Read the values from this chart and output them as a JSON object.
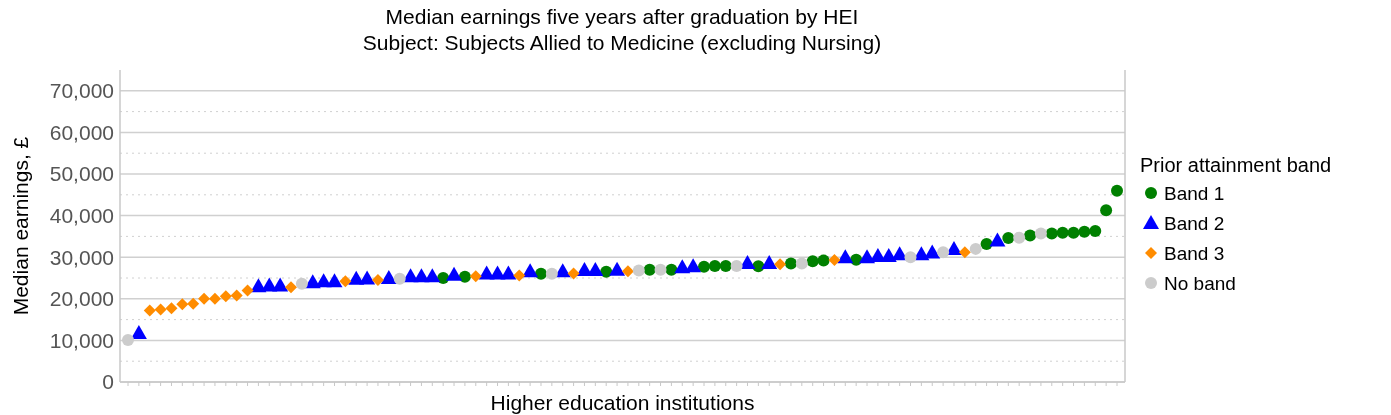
{
  "chart_data": {
    "type": "scatter",
    "title": "Median earnings five years after graduation by HEI",
    "subtitle": "Subject: Subjects Allied to Medicine (excluding Nursing)",
    "xlabel": "Higher education institutions",
    "ylabel": "Median earnings, £",
    "legend_title": "Prior attainment band",
    "legend": "right",
    "grid": "y",
    "ylim": [
      0,
      75000
    ],
    "yticks": [
      0,
      {
        "value": 5000,
        "label": null
      },
      {
        "value": 10000,
        "label": "10,000"
      },
      {
        "value": 15000,
        "label": null
      },
      {
        "value": 20000,
        "label": "20,000"
      },
      {
        "value": 25000,
        "label": null
      },
      {
        "value": 30000,
        "label": "30,000"
      },
      {
        "value": 35000,
        "label": null
      },
      {
        "value": 40000,
        "label": "40,000"
      },
      {
        "value": 45000,
        "label": null
      },
      {
        "value": 50000,
        "label": "50,000"
      },
      {
        "value": 55000,
        "label": null
      },
      {
        "value": 60000,
        "label": "60,000"
      },
      {
        "value": 65000,
        "label": null
      },
      {
        "value": 70000,
        "label": "70,000"
      }
    ],
    "categories": [
      null,
      null,
      null,
      null,
      null,
      null,
      null,
      null,
      null,
      null,
      null,
      null,
      null,
      null,
      null,
      null,
      null,
      null,
      null,
      null,
      null,
      null,
      null,
      null,
      null,
      null,
      null,
      null,
      null,
      null,
      null,
      null,
      null,
      null,
      null,
      null,
      null,
      null,
      null,
      null,
      null,
      null,
      null,
      null,
      null,
      null,
      null,
      null,
      null,
      null,
      null,
      null,
      null,
      null,
      null,
      null,
      null,
      null,
      null,
      null,
      null,
      null,
      null,
      null,
      null,
      null,
      null,
      null,
      null,
      null,
      null,
      null,
      null,
      null,
      null,
      null,
      null,
      null,
      null,
      null,
      null,
      null,
      null,
      null,
      null,
      null,
      null,
      null,
      null,
      null,
      null,
      null
    ],
    "series": [
      {
        "name": "Band 1",
        "color": "#008000",
        "marker": "circle",
        "values": [
          null,
          null,
          null,
          null,
          null,
          null,
          null,
          null,
          null,
          null,
          null,
          null,
          null,
          null,
          null,
          null,
          null,
          null,
          null,
          null,
          null,
          null,
          null,
          null,
          null,
          null,
          null,
          null,
          null,
          25000,
          null,
          25300,
          null,
          null,
          null,
          null,
          null,
          null,
          26000,
          null,
          null,
          null,
          null,
          null,
          26500,
          null,
          null,
          null,
          27000,
          null,
          27000,
          null,
          null,
          27700,
          27900,
          27900,
          null,
          null,
          27800,
          null,
          null,
          28500,
          null,
          29000,
          29200,
          null,
          null,
          29400,
          null,
          null,
          null,
          null,
          null,
          null,
          null,
          null,
          null,
          null,
          null,
          33200,
          null,
          34600,
          null,
          35200,
          null,
          35700,
          35900,
          35900,
          36100,
          36300,
          41300,
          46000
        ]
      },
      {
        "name": "Band 2",
        "color": "#0000ff",
        "marker": "triangle",
        "values": [
          null,
          11800,
          null,
          null,
          null,
          null,
          null,
          null,
          null,
          null,
          null,
          null,
          23000,
          23200,
          23200,
          null,
          null,
          24000,
          24200,
          24200,
          null,
          24800,
          24900,
          null,
          25000,
          null,
          25400,
          25400,
          25400,
          null,
          25800,
          null,
          null,
          26100,
          26100,
          26100,
          null,
          26600,
          null,
          null,
          26600,
          null,
          26900,
          26900,
          null,
          27000,
          null,
          null,
          null,
          null,
          null,
          27600,
          27800,
          null,
          null,
          null,
          null,
          28600,
          null,
          28600,
          null,
          null,
          null,
          null,
          null,
          null,
          30000,
          null,
          30000,
          30300,
          30300,
          30700,
          null,
          30700,
          31100,
          null,
          32000,
          null,
          null,
          null,
          34000,
          null,
          null,
          null,
          null,
          null,
          null,
          null,
          null,
          null,
          null,
          null
        ]
      },
      {
        "name": "Band 3",
        "color": "#ff8c00",
        "marker": "diamond",
        "values": [
          null,
          null,
          17200,
          17400,
          17700,
          18700,
          18800,
          20000,
          20000,
          20600,
          20800,
          22000,
          null,
          null,
          null,
          22800,
          null,
          null,
          null,
          null,
          24200,
          null,
          null,
          24500,
          null,
          null,
          null,
          null,
          null,
          null,
          null,
          null,
          25400,
          null,
          null,
          null,
          25600,
          null,
          null,
          null,
          null,
          26100,
          null,
          null,
          null,
          null,
          26600,
          null,
          null,
          null,
          null,
          null,
          null,
          null,
          null,
          null,
          null,
          null,
          null,
          null,
          28300,
          null,
          null,
          null,
          null,
          29300,
          null,
          null,
          null,
          null,
          null,
          null,
          null,
          null,
          null,
          null,
          null,
          31200,
          null,
          null,
          null,
          null,
          null,
          null,
          null,
          null,
          null,
          null,
          null,
          null,
          null,
          null
        ]
      },
      {
        "name": "No band",
        "color": "#cccccc",
        "marker": "circle",
        "values": [
          10100,
          null,
          null,
          null,
          null,
          null,
          null,
          null,
          null,
          null,
          null,
          null,
          null,
          null,
          null,
          null,
          23600,
          null,
          null,
          null,
          null,
          null,
          null,
          null,
          null,
          24800,
          null,
          null,
          null,
          null,
          null,
          null,
          null,
          null,
          null,
          null,
          null,
          null,
          null,
          26000,
          null,
          null,
          null,
          null,
          null,
          null,
          null,
          26800,
          null,
          27000,
          null,
          null,
          null,
          null,
          null,
          null,
          27900,
          null,
          null,
          null,
          null,
          null,
          28500,
          null,
          null,
          null,
          null,
          null,
          null,
          null,
          null,
          null,
          30000,
          null,
          null,
          31200,
          null,
          null,
          32000,
          null,
          null,
          null,
          34700,
          null,
          35700,
          null,
          null,
          null,
          null,
          null,
          null,
          null
        ]
      }
    ]
  }
}
